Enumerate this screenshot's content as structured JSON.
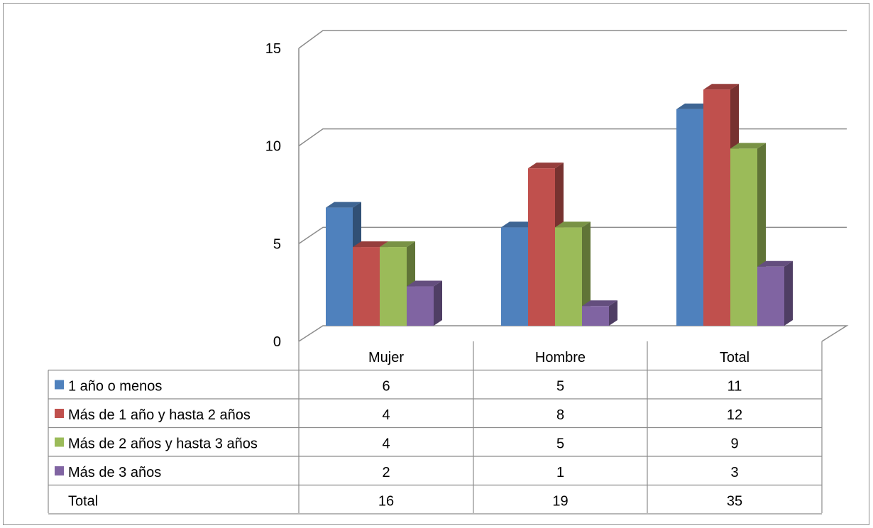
{
  "chart_data": {
    "type": "bar",
    "subtype": "3d-clustered-column-with-data-table",
    "categories": [
      "Mujer",
      "Hombre",
      "Total"
    ],
    "series": [
      {
        "name": "1 año o menos",
        "color": "#4f81bd",
        "values": [
          6,
          5,
          11
        ]
      },
      {
        "name": "Más de 1 año y hasta 2 años",
        "color": "#c0504d",
        "values": [
          4,
          8,
          12
        ]
      },
      {
        "name": "Más de 2 años y hasta 3 años",
        "color": "#9bbb59",
        "values": [
          4,
          5,
          9
        ]
      },
      {
        "name": "Más de 3 años",
        "color": "#8064a2",
        "values": [
          2,
          1,
          3
        ]
      }
    ],
    "ylim": [
      0,
      15
    ],
    "yticks": [
      "0",
      "5",
      "10",
      "15"
    ],
    "grid": true,
    "legend": "data-table",
    "table_total_row": {
      "label": "Total",
      "values": [
        "16",
        "19",
        "35"
      ]
    }
  }
}
